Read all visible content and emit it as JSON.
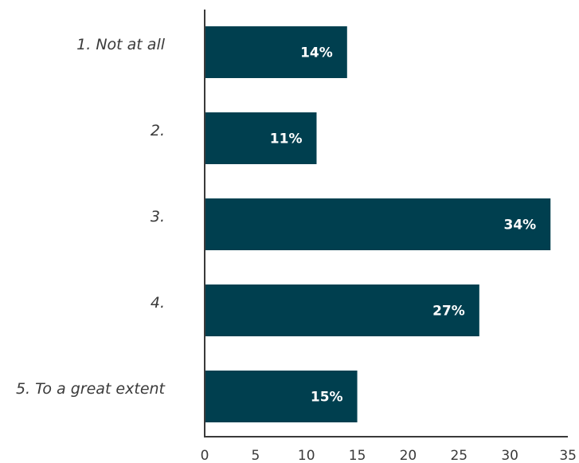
{
  "chart_data": {
    "type": "bar",
    "orientation": "horizontal",
    "title": "",
    "xlabel": "",
    "ylabel": "",
    "categories": [
      "1. Not at all",
      "2.",
      "3.",
      "4.",
      "5. To a great extent"
    ],
    "values": [
      14,
      11,
      34,
      27,
      15
    ],
    "data_labels": [
      "14%",
      "11%",
      "34%",
      "27%",
      "15%"
    ],
    "xlim": [
      0,
      35
    ],
    "xticks": [
      0,
      5,
      10,
      15,
      20,
      25,
      30,
      35
    ],
    "grid": false,
    "legend": "none",
    "colors": {
      "bar": "#003f4f",
      "bar_label": "#ffffff",
      "axis": "#3a3a3a"
    }
  }
}
